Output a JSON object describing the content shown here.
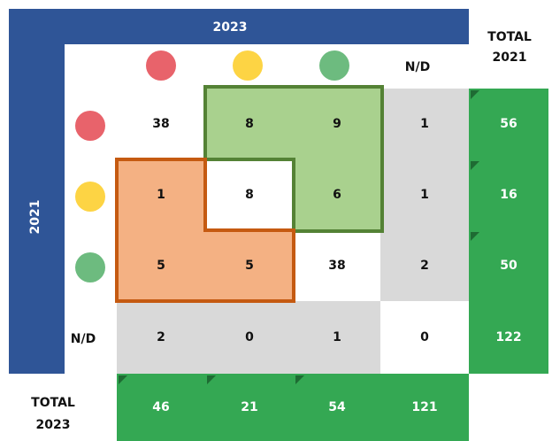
{
  "top_header": "2023",
  "side_header": "2021",
  "nd_column_header": "N/D",
  "nd_row_header": "N/D",
  "total_column_header": [
    "TOTAL",
    "2021"
  ],
  "total_row_header": [
    "TOTAL",
    "2023"
  ],
  "rows": [
    [
      38,
      8,
      9,
      1
    ],
    [
      1,
      8,
      6,
      1
    ],
    [
      5,
      5,
      38,
      2
    ],
    [
      2,
      0,
      1,
      0
    ]
  ],
  "row_totals": [
    56,
    16,
    50,
    122
  ],
  "column_totals": [
    46,
    21,
    54,
    121
  ]
}
